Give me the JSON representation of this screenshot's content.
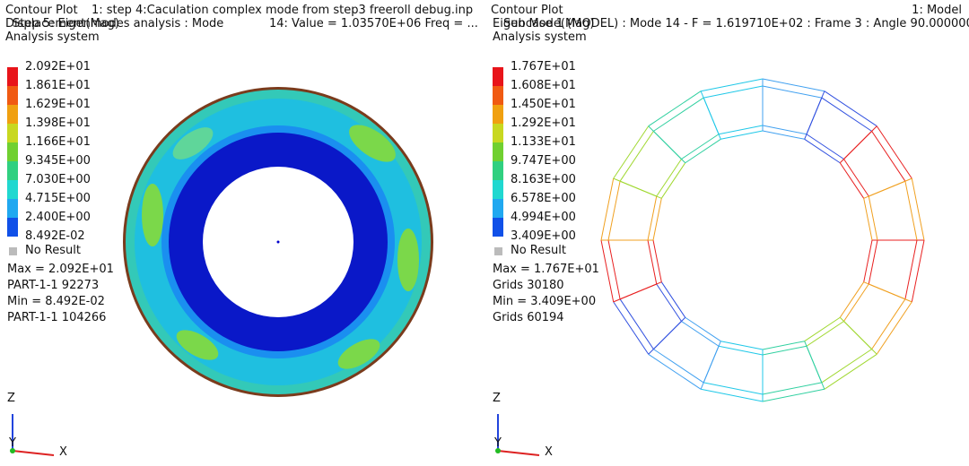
{
  "left_panel": {
    "header": {
      "line1_left": "Contour Plot",
      "line1_right": "1:  step 4:Caculation complex mode from step3 freeroll debug.inp",
      "line2_left": "Displacement(Mag)",
      "line2_overlap": "Step 5: Eigenmodes analysis : Mode",
      "line2_right": "14: Value =  1.03570E+06 Freq =  ...",
      "line3": "Analysis system"
    },
    "legend": {
      "labels": [
        "2.092E+01",
        "1.861E+01",
        "1.629E+01",
        "1.398E+01",
        "1.166E+01",
        "9.345E+00",
        "7.030E+00",
        "4.715E+00",
        "2.400E+00",
        "8.492E-02"
      ],
      "no_result": "No Result"
    },
    "stats": [
      "Max = 2.092E+01",
      "PART-1-1 92273",
      "Min = 8.492E-02",
      "PART-1-1 104266"
    ],
    "axes": {
      "z": "Z",
      "y": "Y",
      "x": "X"
    }
  },
  "right_panel": {
    "header": {
      "line1_left": "Contour Plot",
      "line1_right": "1: Model",
      "line2_left": "Eigen Mode(Mag)",
      "line2_overlap": "Subcase 1 (MODEL) : Mode 14 - F = 1.619710E+02 : Frame 3 : Angle 90.000000",
      "line3": "Analysis system"
    },
    "legend": {
      "labels": [
        "1.767E+01",
        "1.608E+01",
        "1.450E+01",
        "1.292E+01",
        "1.133E+01",
        "9.747E+00",
        "8.163E+00",
        "6.578E+00",
        "4.994E+00",
        "3.409E+00"
      ],
      "no_result": "No Result"
    },
    "stats": [
      "Max =  1.767E+01",
      "Grids 30180",
      "Min =  3.409E+00",
      "Grids 60194"
    ],
    "axes": {
      "z": "Z",
      "y": "Y",
      "x": "X"
    }
  }
}
